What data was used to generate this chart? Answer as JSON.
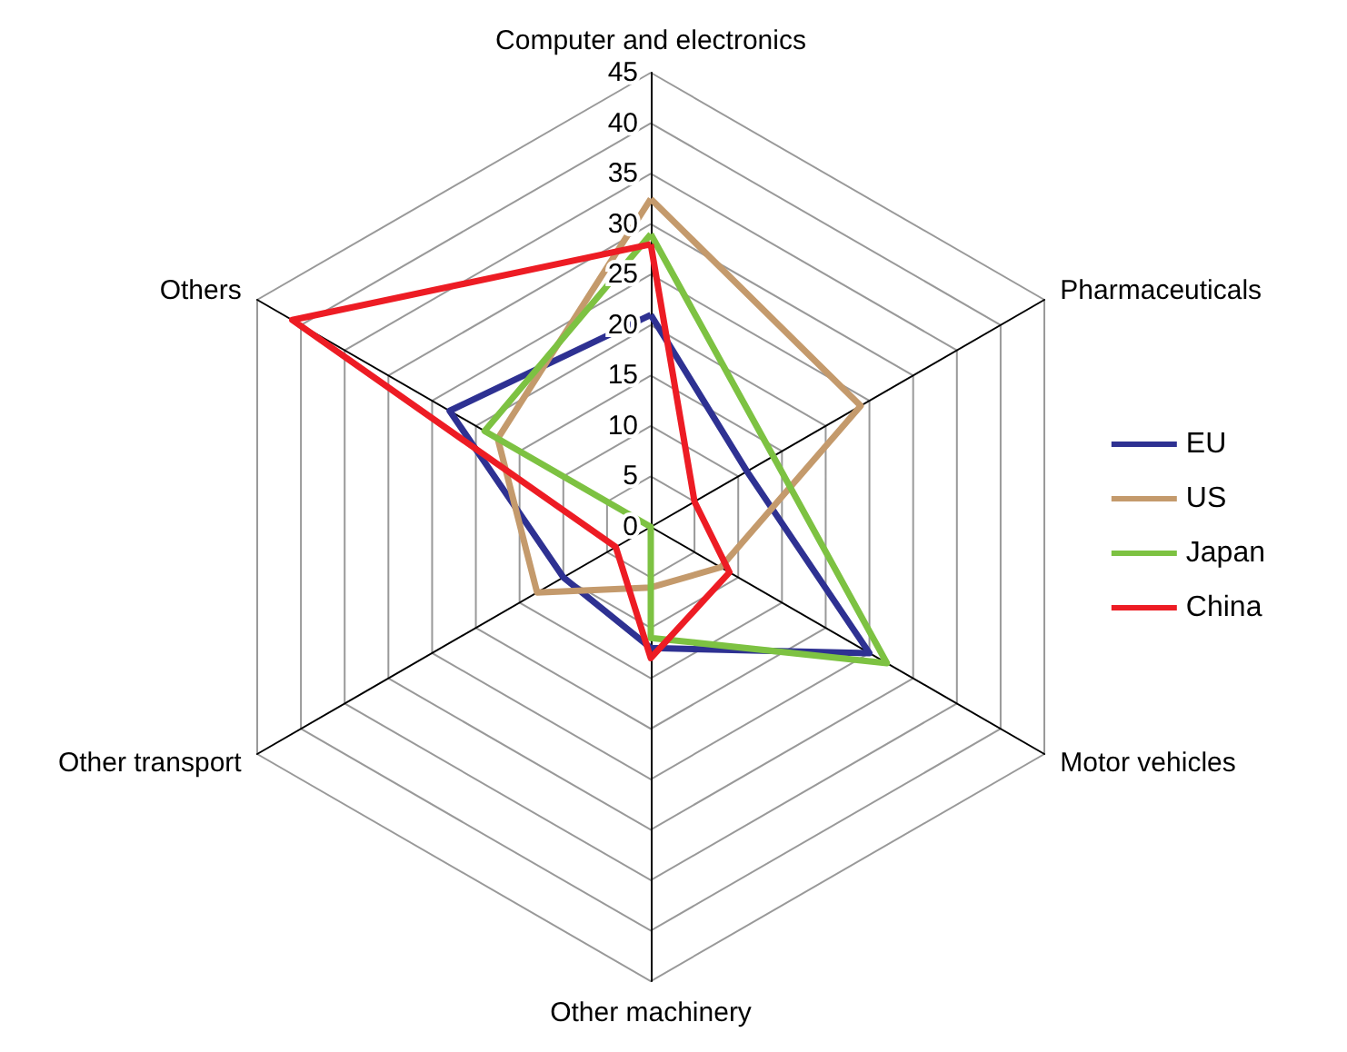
{
  "chart_data": {
    "type": "radar",
    "categories": [
      "Computer and electronics",
      "Pharmaceuticals",
      "Motor vehicles",
      "Other machinery",
      "Other transport",
      "Others"
    ],
    "ylim": [
      0,
      45
    ],
    "yticks": [
      0,
      5,
      10,
      15,
      20,
      25,
      30,
      35,
      40,
      45
    ],
    "grid": true,
    "legend": "right",
    "marker": "none",
    "line_style": "solid",
    "series": [
      {
        "name": "EU",
        "color": "#2e3192",
        "values": [
          21,
          11,
          25,
          12,
          10,
          23
        ]
      },
      {
        "name": "US",
        "color": "#c49a6c",
        "values": [
          32.5,
          24,
          8,
          6,
          13,
          17.5
        ]
      },
      {
        "name": "Japan",
        "color": "#7dc242",
        "values": [
          29,
          14,
          27,
          11,
          0,
          19
        ]
      },
      {
        "name": "China",
        "color": "#ed1c24",
        "values": [
          28,
          5,
          9,
          13,
          4,
          41
        ]
      }
    ]
  }
}
